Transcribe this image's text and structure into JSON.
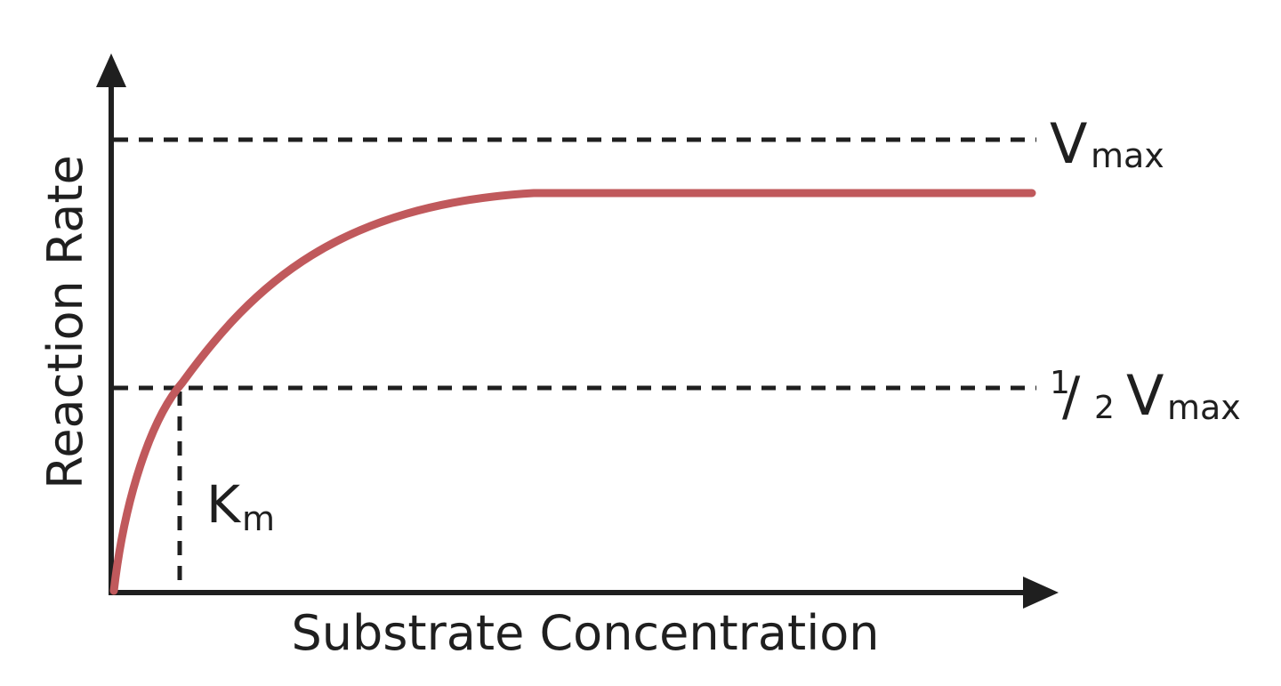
{
  "axes": {
    "x_label": "Substrate Concentration",
    "y_label": "Reaction Rate"
  },
  "guides": {
    "vmax": {
      "main": "V",
      "sub": "max"
    },
    "half_vmax": {
      "num": "1",
      "slash": "/",
      "den": "2",
      "main": "V",
      "sub": "max"
    },
    "km": {
      "main": "K",
      "sub": "m"
    }
  },
  "colors": {
    "curve": "#c0595c",
    "axis": "#1f1f1f",
    "background": "#ffffff"
  }
}
